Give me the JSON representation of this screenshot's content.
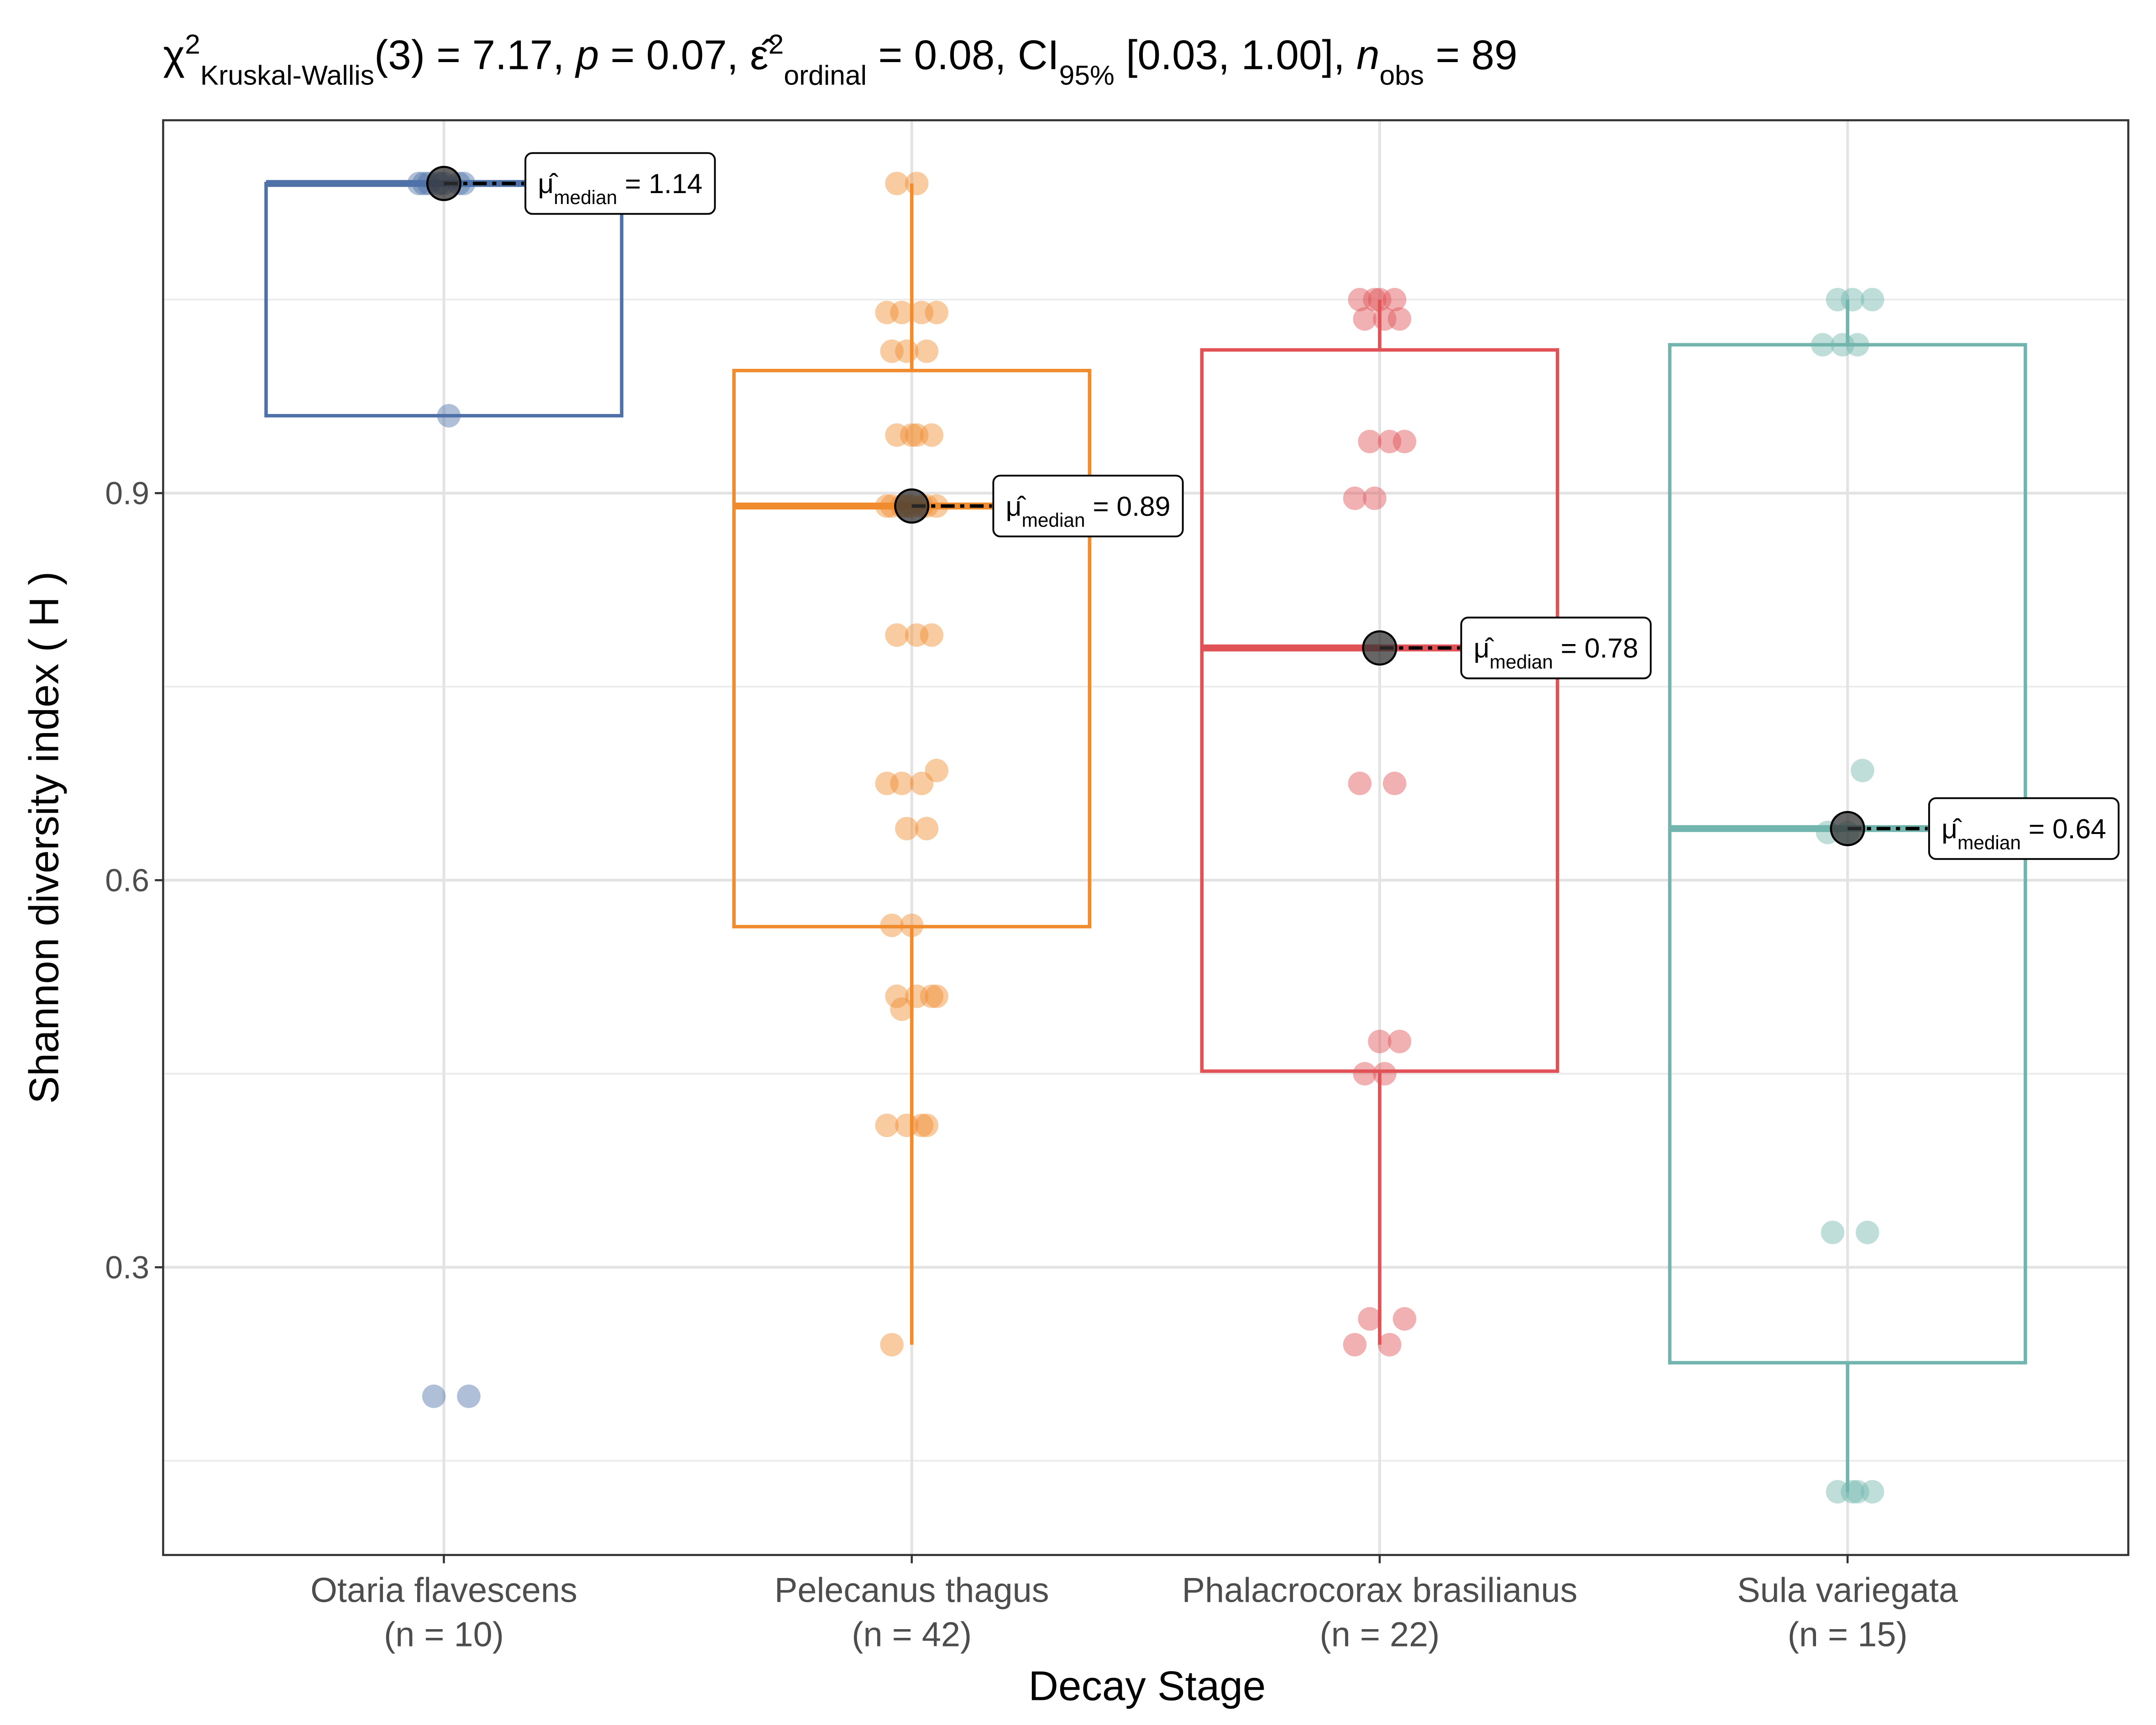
{
  "chart_data": {
    "type": "box",
    "title_parts": [
      {
        "text": "χ"
      },
      {
        "text": "2",
        "pos": "sup"
      },
      {
        "text": "Kruskal-Wallis",
        "pos": "sub"
      },
      {
        "text": "(3) = 7.17, "
      },
      {
        "text": "p",
        "italic": true
      },
      {
        "text": " = 0.07, "
      },
      {
        "text": "ε̂"
      },
      {
        "text": "2",
        "pos": "sup"
      },
      {
        "text": "ordinal",
        "pos": "sub"
      },
      {
        "text": " = 0.08, CI"
      },
      {
        "text": "95%",
        "pos": "sub"
      },
      {
        "text": " [0.03, 1.00], "
      },
      {
        "text": "n",
        "italic": true
      },
      {
        "text": "obs",
        "pos": "sub"
      },
      {
        "text": " = 89"
      }
    ],
    "x_label": "Decay Stage",
    "y_label": "Shannon diversity index ( H )",
    "ylim": [
      0.077,
      1.189
    ],
    "yticks": [
      0.3,
      0.6,
      0.9
    ],
    "yminor": [
      0.15,
      0.45,
      0.75,
      1.05
    ],
    "grid": true,
    "median_symbol": "μ̂",
    "median_sub": "median",
    "groups": [
      {
        "name": "Otaria flavescens",
        "n_label": "(n = 10)",
        "color": "#4e72a8",
        "values": [
          1.14,
          1.14,
          1.14,
          1.14,
          1.14,
          1.14,
          1.14,
          0.96,
          0.2,
          0.2
        ],
        "q1": 0.96,
        "median": 1.14,
        "q3": 1.14,
        "whisker_low": 0.96,
        "whisker_high": 1.14,
        "median_label": " = 1.14"
      },
      {
        "name": "Pelecanus thagus",
        "n_label": "(n = 42)",
        "color": "#f08c2e",
        "values": [
          1.14,
          1.14,
          1.04,
          1.04,
          1.04,
          1.04,
          1.01,
          1.01,
          1.01,
          0.945,
          0.945,
          0.945,
          0.945,
          0.89,
          0.89,
          0.89,
          0.89,
          0.89,
          0.89,
          0.89,
          0.89,
          0.79,
          0.79,
          0.79,
          0.685,
          0.675,
          0.675,
          0.675,
          0.64,
          0.64,
          0.565,
          0.565,
          0.51,
          0.51,
          0.51,
          0.51,
          0.5,
          0.41,
          0.41,
          0.41,
          0.41,
          0.24
        ],
        "q1": 0.564,
        "median": 0.89,
        "q3": 0.995,
        "whisker_low": 0.24,
        "whisker_high": 1.14,
        "median_label": " = 0.89"
      },
      {
        "name": "Phalacrocorax brasilianus",
        "n_label": "(n = 22)",
        "color": "#e05256",
        "values": [
          1.05,
          1.05,
          1.05,
          1.05,
          1.035,
          1.035,
          1.035,
          0.94,
          0.94,
          0.94,
          0.896,
          0.896,
          0.675,
          0.675,
          0.475,
          0.475,
          0.45,
          0.45,
          0.26,
          0.26,
          0.24,
          0.24
        ],
        "q1": 0.452,
        "median": 0.78,
        "q3": 1.011,
        "whisker_low": 0.24,
        "whisker_high": 1.05,
        "median_label": " = 0.78"
      },
      {
        "name": "Sula variegata",
        "n_label": "(n = 15)",
        "color": "#72b5ae",
        "values": [
          1.05,
          1.05,
          1.05,
          1.015,
          1.015,
          1.015,
          0.685,
          0.637,
          0.637,
          0.327,
          0.327,
          0.126,
          0.126,
          0.126,
          0.126
        ],
        "q1": 0.226,
        "median": 0.64,
        "q3": 1.015,
        "whisker_low": 0.126,
        "whisker_high": 1.05,
        "median_label": " = 0.64"
      }
    ]
  }
}
